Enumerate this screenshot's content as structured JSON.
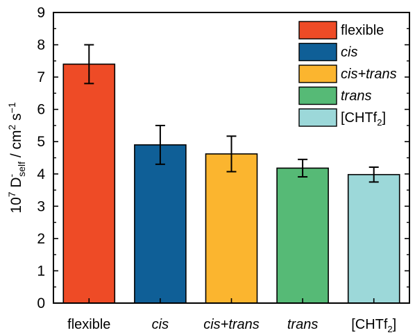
{
  "chart_data": {
    "type": "bar",
    "categories": [
      {
        "main": "flexible",
        "sub": "",
        "italic": false
      },
      {
        "main": "cis",
        "sub": "",
        "italic": true
      },
      {
        "main": "cis+trans",
        "sub": "",
        "italic": true
      },
      {
        "main": "trans",
        "sub": "",
        "italic": true
      },
      {
        "main": "[CHTf",
        "sub": "2",
        "tail": "]",
        "italic": false
      }
    ],
    "values": [
      7.4,
      4.9,
      4.62,
      4.18,
      3.98
    ],
    "errors": [
      0.6,
      0.6,
      0.55,
      0.27,
      0.23
    ],
    "colors": [
      "#ee4b26",
      "#0f5f97",
      "#fbb52f",
      "#56ba76",
      "#9cd8d9"
    ],
    "ylim": [
      0,
      9
    ],
    "yticks": [
      "0",
      "1",
      "2",
      "3",
      "4",
      "5",
      "6",
      "7",
      "8",
      "9"
    ],
    "ylabel": {
      "prefix": "10",
      "exp": "7",
      "symbol": "D",
      "sup": "-",
      "sub": "self",
      "unit": " / cm",
      "unit_exp": "2",
      "unit_s": " s",
      "unit_s_exp": "−1"
    },
    "legend": {
      "position": "top-right",
      "entries": [
        {
          "label": "flexible",
          "sub": "",
          "italic": false
        },
        {
          "label": "cis",
          "sub": "",
          "italic": true
        },
        {
          "label": "cis+trans",
          "sub": "",
          "italic": true
        },
        {
          "label": "trans",
          "sub": "",
          "italic": true
        },
        {
          "label": "[CHTf",
          "sub": "2",
          "tail": "]",
          "italic": false
        }
      ]
    },
    "grid": false
  }
}
